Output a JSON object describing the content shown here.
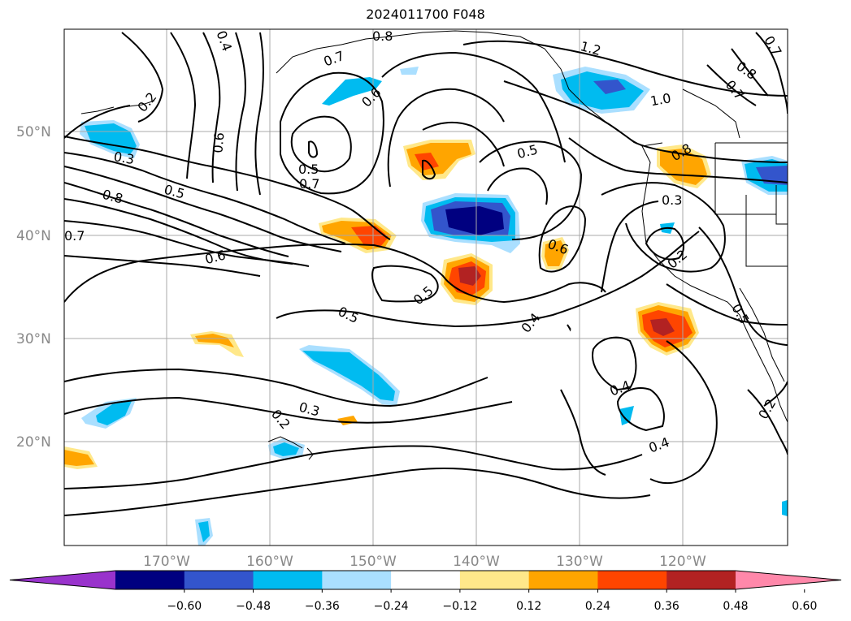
{
  "title": "2024011700 F048",
  "lat_labels": [
    "50°N",
    "40°N",
    "30°N",
    "20°N"
  ],
  "lon_labels": [
    "170°W",
    "160°W",
    "150°W",
    "140°W",
    "130°W",
    "120°W"
  ],
  "colorbar": {
    "colors": [
      "#9933cc",
      "#000080",
      "#3355cc",
      "#00bbf0",
      "#aadfff",
      "#ffffff",
      "#ffe88a",
      "#ffa500",
      "#ff4500",
      "#b22222",
      "#ff88aa"
    ],
    "tick_labels": [
      "−0.60",
      "−0.48",
      "−0.36",
      "−0.24",
      "−0.12",
      "0.12",
      "0.24",
      "0.36",
      "0.48",
      "0.60"
    ]
  },
  "contour_labels": [
    {
      "text": "0.8"
    },
    {
      "text": "0.4"
    },
    {
      "text": "0.7"
    },
    {
      "text": "1.2"
    },
    {
      "text": "0.7"
    },
    {
      "text": "0.8"
    },
    {
      "text": "0.7"
    },
    {
      "text": "0.2"
    },
    {
      "text": "0.6"
    },
    {
      "text": "1.0"
    },
    {
      "text": "0.6"
    },
    {
      "text": "0.3"
    },
    {
      "text": "0.5"
    },
    {
      "text": "0.5"
    },
    {
      "text": "0.8"
    },
    {
      "text": "0.7"
    },
    {
      "text": "0.5"
    },
    {
      "text": "0.8"
    },
    {
      "text": "0.3"
    },
    {
      "text": "0.7"
    },
    {
      "text": "0.6"
    },
    {
      "text": "0.6"
    },
    {
      "text": "0.2"
    },
    {
      "text": "0.5"
    },
    {
      "text": "0.5"
    },
    {
      "text": "0.5"
    },
    {
      "text": "0.4"
    },
    {
      "text": "0.4"
    },
    {
      "text": "0.3"
    },
    {
      "text": "0.2"
    },
    {
      "text": "0.4"
    },
    {
      "text": "0.2"
    }
  ]
}
